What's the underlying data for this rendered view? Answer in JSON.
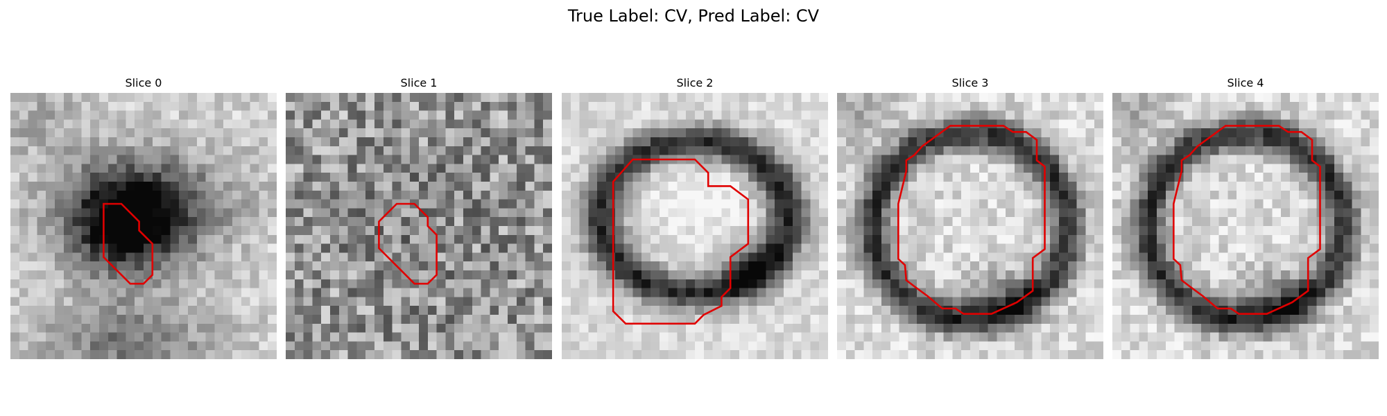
{
  "figure": {
    "suptitle": "True Label: CV, Pred Label: CV"
  },
  "panels": [
    {
      "title": "Slice 0"
    },
    {
      "title": "Slice 1"
    },
    {
      "title": "Slice 2"
    },
    {
      "title": "Slice 3"
    },
    {
      "title": "Slice 4"
    }
  ],
  "colors": {
    "contour": "#e00000",
    "background": "#ffffff"
  }
}
